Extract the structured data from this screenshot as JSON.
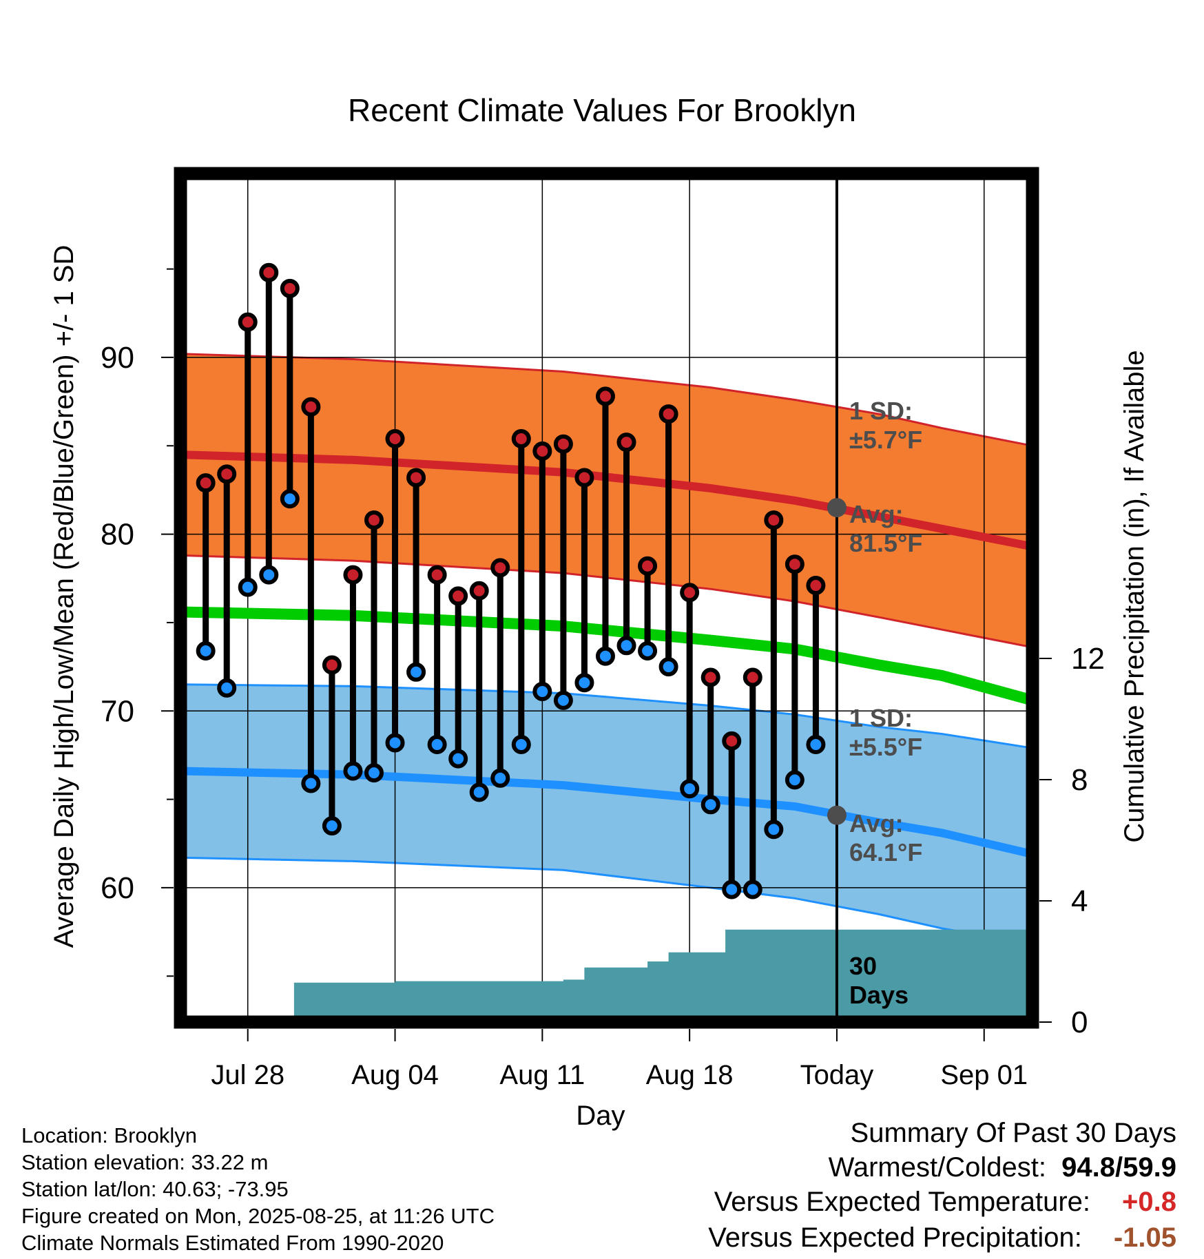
{
  "chart_data": {
    "type": "line",
    "title": "Recent Climate Values For Brooklyn",
    "xlabel": "Day",
    "ylabel": "Average Daily High/Low/Mean (Red/Blue/Green) +/- 1 SD",
    "ylabel_right": "Cumulative Precipitation (in), If Available",
    "ylim": [
      52.4,
      100.4
    ],
    "ylim_right": [
      0,
      28
    ],
    "xlim": [
      -3.2,
      37.3
    ],
    "x_ticks": [
      {
        "x": 0,
        "label": "Jul 28"
      },
      {
        "x": 7,
        "label": "Aug 04"
      },
      {
        "x": 14,
        "label": "Aug 11"
      },
      {
        "x": 21,
        "label": "Aug 18"
      },
      {
        "x": 28,
        "label": "Today"
      },
      {
        "x": 35,
        "label": "Sep 01"
      }
    ],
    "y_ticks": [
      60,
      70,
      80,
      90
    ],
    "y_ticks_right": [
      0,
      4,
      8,
      12
    ],
    "today_x": 28,
    "normals": {
      "x": [
        -3.2,
        5,
        15,
        22,
        26,
        30,
        33,
        37.3
      ],
      "high_mean": [
        84.5,
        84.2,
        83.5,
        82.6,
        81.9,
        81.0,
        80.3,
        79.3
      ],
      "high_upper": [
        90.2,
        89.9,
        89.2,
        88.3,
        87.6,
        86.8,
        86.0,
        85.0
      ],
      "high_lower": [
        78.8,
        78.5,
        77.8,
        76.9,
        76.2,
        75.3,
        74.6,
        73.6
      ],
      "mean": [
        75.6,
        75.4,
        74.8,
        74.0,
        73.5,
        72.6,
        72.0,
        70.6
      ],
      "low_mean": [
        66.6,
        66.4,
        65.8,
        65.0,
        64.6,
        63.7,
        63.1,
        61.9
      ],
      "low_upper": [
        71.5,
        71.4,
        71.0,
        70.3,
        69.8,
        69.1,
        68.7,
        67.9
      ],
      "low_lower": [
        61.7,
        61.5,
        61.0,
        60.0,
        59.4,
        58.5,
        57.7,
        56.8
      ]
    },
    "series": [
      {
        "name": "High",
        "color": "#c8202a",
        "x": [
          -2,
          -1,
          0,
          1,
          2,
          3,
          4,
          5,
          6,
          7,
          8,
          9,
          10,
          11,
          12,
          13,
          14,
          15,
          16,
          17,
          18,
          19,
          20,
          21,
          22,
          23,
          24,
          25,
          26,
          27
        ],
        "values": [
          82.9,
          83.4,
          92.0,
          94.8,
          93.9,
          87.2,
          72.6,
          77.7,
          80.8,
          85.4,
          83.2,
          77.7,
          76.5,
          76.8,
          78.1,
          85.4,
          84.7,
          85.1,
          83.2,
          87.8,
          85.2,
          78.2,
          86.8,
          76.7,
          71.9,
          68.3,
          71.9,
          80.8,
          78.3,
          77.1
        ]
      },
      {
        "name": "Low",
        "color": "#1e90ff",
        "x": [
          -2,
          -1,
          0,
          1,
          2,
          3,
          4,
          5,
          6,
          7,
          8,
          9,
          10,
          11,
          12,
          13,
          14,
          15,
          16,
          17,
          18,
          19,
          20,
          21,
          22,
          23,
          24,
          25,
          26,
          27
        ],
        "values": [
          73.4,
          71.3,
          77.0,
          77.7,
          82.0,
          65.9,
          63.5,
          66.6,
          66.5,
          68.2,
          72.2,
          68.1,
          67.3,
          65.4,
          66.2,
          68.1,
          71.1,
          70.6,
          71.6,
          73.1,
          73.7,
          73.4,
          72.5,
          65.6,
          64.7,
          59.9,
          59.9,
          63.3,
          66.1,
          68.1
        ]
      }
    ],
    "precip": {
      "x": [
        -3.2,
        1.2,
        2.2,
        7.0,
        15.0,
        16.0,
        18.5,
        19.0,
        20.0,
        21.0,
        22.0,
        22.7,
        37.3
      ],
      "values": [
        0,
        0,
        1.3,
        1.35,
        1.4,
        1.8,
        1.8,
        2.0,
        2.3,
        2.3,
        2.3,
        3.05,
        3.05
      ]
    },
    "colors": {
      "high_band": "#f47c30",
      "high_line": "#d0232a",
      "mean_line": "#00cc00",
      "low_band": "#82c0e8",
      "low_line": "#1e90ff",
      "precip": "#4a9ba5",
      "avg_marker": "#4d4d4d"
    },
    "annotations": {
      "high_sd": [
        "1 SD:",
        "±5.7°F"
      ],
      "high_avg": [
        "Avg:",
        "81.5°F"
      ],
      "low_sd": [
        "1 SD:",
        "±5.5°F"
      ],
      "low_avg": [
        "Avg:",
        "64.1°F"
      ],
      "period": [
        "30",
        "Days"
      ]
    },
    "avg_markers": [
      81.5,
      64.1
    ],
    "grid": true
  },
  "info": {
    "location": "Location: Brooklyn",
    "elevation": "Station elevation: 33.22 m",
    "latlon": "Station lat/lon: 40.63; -73.95",
    "created": "Figure created on Mon, 2025-08-25, at 11:26 UTC",
    "normals": "Climate Normals Estimated From 1990-2020"
  },
  "summary": {
    "title": "Summary Of Past 30 Days",
    "warm_label": "Warmest/Coldest:",
    "warm_value": "94.8/59.9",
    "temp_label": "Versus Expected Temperature:",
    "temp_value": "+0.8",
    "precip_label": "Versus Expected Precipitation:",
    "precip_value": "-1.05"
  }
}
